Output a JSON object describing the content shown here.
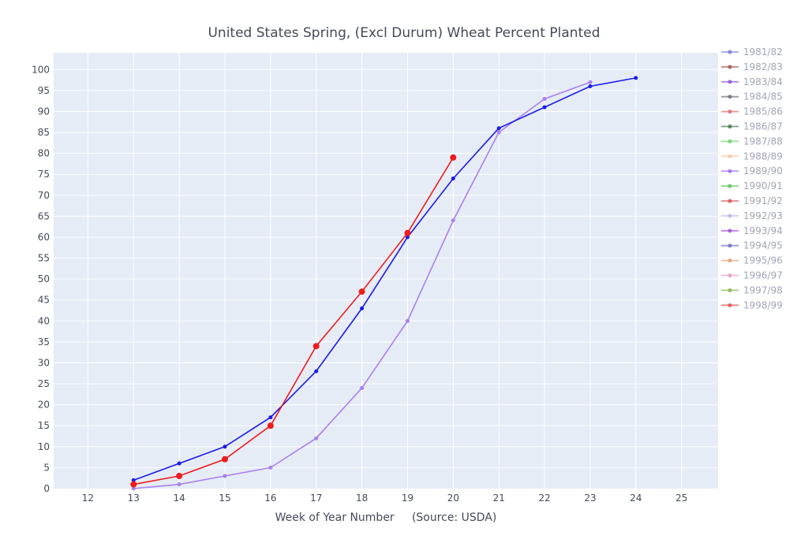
{
  "chart_data": {
    "type": "line",
    "title": "United States Spring, (Excl Durum) Wheat Percent Planted",
    "xlabel": "Week of Year Number     (Source: USDA)",
    "ylabel": "",
    "xlim": [
      11.25,
      25.8
    ],
    "ylim": [
      0,
      104
    ],
    "x_ticks": [
      12,
      13,
      14,
      15,
      16,
      17,
      18,
      19,
      20,
      21,
      22,
      23,
      24,
      25
    ],
    "y_ticks": [
      0,
      5,
      10,
      15,
      20,
      25,
      30,
      35,
      40,
      45,
      50,
      55,
      60,
      65,
      70,
      75,
      80,
      85,
      90,
      95,
      100
    ],
    "grid": true,
    "legend_position": "right",
    "colors": {
      "plot_bg": "#e5ecf6",
      "grid": "#ffffff"
    },
    "legend": [
      {
        "name": "1981/82",
        "color": "#7b7bd6"
      },
      {
        "name": "1982/83",
        "color": "#a0524a"
      },
      {
        "name": "1983/84",
        "color": "#8a55d8"
      },
      {
        "name": "1984/85",
        "color": "#6e6e78"
      },
      {
        "name": "1985/86",
        "color": "#e06a6a"
      },
      {
        "name": "1986/87",
        "color": "#3f7a4c"
      },
      {
        "name": "1987/88",
        "color": "#6cd36c"
      },
      {
        "name": "1988/89",
        "color": "#f4c8a0"
      },
      {
        "name": "1989/90",
        "color": "#9b6cf0"
      },
      {
        "name": "1990/91",
        "color": "#55c455"
      },
      {
        "name": "1991/92",
        "color": "#d9534f"
      },
      {
        "name": "1992/93",
        "color": "#b8b8e8"
      },
      {
        "name": "1993/94",
        "color": "#a24fd8"
      },
      {
        "name": "1994/95",
        "color": "#6c70b8"
      },
      {
        "name": "1995/96",
        "color": "#e0a070"
      },
      {
        "name": "1996/97",
        "color": "#e0a0c8"
      },
      {
        "name": "1997/98",
        "color": "#8ab04a"
      },
      {
        "name": "1998/99",
        "color": "#e25050"
      }
    ],
    "series": [
      {
        "color": "#aa80ee",
        "marker_size": 2.5,
        "x": [
          13,
          14,
          15,
          16,
          17,
          18,
          19,
          20,
          21,
          22,
          23
        ],
        "y": [
          0,
          1,
          3,
          5,
          12,
          24,
          40,
          64,
          85,
          93,
          97
        ]
      },
      {
        "color": "#1a1aee",
        "marker_size": 2.5,
        "x": [
          13,
          14,
          15,
          16,
          17,
          18,
          19,
          20,
          21,
          22,
          23,
          24
        ],
        "y": [
          2,
          6,
          10,
          17,
          28,
          43,
          60,
          74,
          86,
          91,
          96,
          98
        ]
      },
      {
        "color": "#ee1c1c",
        "marker_size": 4,
        "x": [
          13,
          14,
          15,
          16,
          17,
          18,
          19,
          20
        ],
        "y": [
          1,
          3,
          7,
          15,
          34,
          47,
          61,
          79
        ]
      }
    ]
  }
}
